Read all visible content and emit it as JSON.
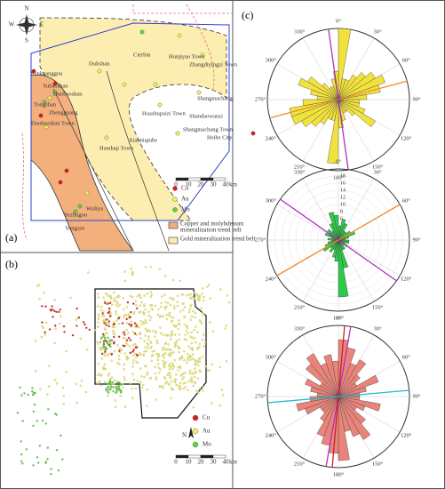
{
  "panel_a": {
    "label": "(a)",
    "compass": {
      "n": "N",
      "w": "W",
      "e": "E",
      "s": "S"
    },
    "scale": {
      "ticks": [
        0,
        10,
        20,
        30,
        40
      ],
      "unit": "km"
    },
    "places": [
      "Sankuanggou",
      "Yubaoshan",
      "Duobaoshan",
      "Tongshan",
      "Zhengguang",
      "Duobaoshan Town",
      "Dulishan",
      "Cierbin",
      "Hunjiyao Town",
      "Zhangdiyingzi Town",
      "Huashupaizi Town",
      "Shandaowanzi",
      "Shangmachang",
      "Shangmachang Town",
      "Heihe City",
      "Xiaoniqiube",
      "Handaqi Town",
      "Wuliya",
      "Yezhugou",
      "Yongxin"
    ],
    "legend": {
      "points": [
        {
          "name": "Cu",
          "color": "#e01818"
        },
        {
          "name": "Au",
          "color": "#f4f05a"
        },
        {
          "name": "Mo",
          "color": "#5cd23c"
        }
      ],
      "belts": [
        {
          "lines": [
            "Copper and molybdenum",
            "mineralization trend belt"
          ],
          "color": "#f3b07c"
        },
        {
          "lines": [
            "Gold mineralization trend belt"
          ],
          "color": "#fbeeb0"
        }
      ]
    }
  },
  "panel_b": {
    "label": "(b)",
    "compass": "N",
    "scale": {
      "ticks": [
        0,
        10,
        20,
        30,
        40
      ],
      "unit": "km"
    },
    "legend": [
      {
        "name": "Cu",
        "color": "#e01818"
      },
      {
        "name": "Au",
        "color": "#f4f05a"
      },
      {
        "name": "Mo",
        "color": "#5cd23c"
      }
    ]
  },
  "panel_c": {
    "label": "(c)",
    "angle_labels": [
      "0°",
      "30°",
      "60°",
      "90°",
      "120°",
      "150°",
      "180°",
      "210°",
      "240°",
      "270°",
      "300°",
      "330°"
    ],
    "roses": [
      {
        "fill": "#f2e33c",
        "rmax": 10,
        "petals": [
          10,
          3,
          3,
          4,
          5,
          6,
          7,
          6,
          4,
          3,
          3,
          4,
          6,
          3,
          2,
          2,
          3,
          4,
          9,
          3,
          3,
          4,
          5,
          6,
          7,
          7,
          5,
          3,
          4,
          6,
          5,
          3,
          2,
          2,
          3,
          4
        ],
        "lines": [
          {
            "angle": 75,
            "color": "#f08c2a"
          },
          {
            "angle": 172,
            "color": "#b030c0"
          }
        ]
      },
      {
        "fill": "#2fc94a",
        "rmax": 20,
        "rticks": [
          2,
          4,
          6,
          8,
          10,
          12,
          14,
          16,
          18
        ],
        "petals": [
          4,
          6,
          5,
          3,
          3,
          4,
          5,
          3,
          2,
          3,
          3,
          2,
          3,
          2,
          3,
          3,
          8,
          16,
          6,
          5,
          3,
          4,
          3,
          5,
          4,
          3,
          2,
          3,
          2,
          4,
          3,
          4,
          3,
          5,
          8,
          7
        ],
        "lines": [
          {
            "angle": 60,
            "color": "#f08c2a"
          },
          {
            "angle": 125,
            "color": "#b030c0"
          }
        ]
      },
      {
        "fill": "#e8847a",
        "rmax": 10,
        "petals": [
          8,
          7,
          5,
          6,
          4,
          3,
          6,
          4,
          3,
          3,
          6,
          4,
          3,
          5,
          7,
          6,
          5,
          9,
          8,
          7,
          6,
          4,
          3,
          3,
          5,
          6,
          4,
          3,
          4,
          5,
          3,
          6,
          7,
          5,
          6,
          5
        ],
        "lines": [
          {
            "angle": 10,
            "color": "#b030c0"
          },
          {
            "angle": 5,
            "color": "#d02020"
          },
          {
            "angle": 85,
            "color": "#20b8d0"
          }
        ]
      }
    ]
  }
}
